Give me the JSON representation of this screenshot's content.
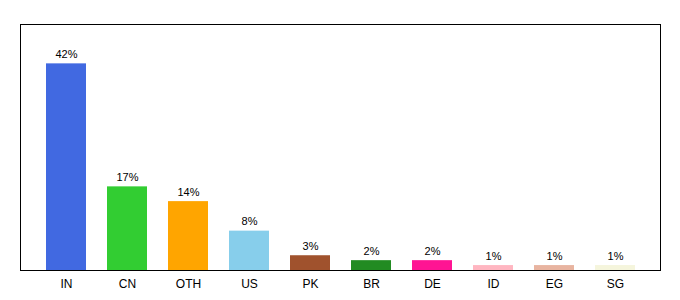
{
  "chart_data": {
    "type": "bar",
    "categories": [
      "IN",
      "CN",
      "OTH",
      "US",
      "PK",
      "BR",
      "DE",
      "ID",
      "EG",
      "SG"
    ],
    "values": [
      42,
      17,
      14,
      8,
      3,
      2,
      2,
      1,
      1,
      1
    ],
    "value_labels": [
      "42%",
      "17%",
      "14%",
      "8%",
      "3%",
      "2%",
      "2%",
      "1%",
      "1%",
      "1%"
    ],
    "colors": [
      "#4169e1",
      "#32cd32",
      "#ffa500",
      "#87ceeb",
      "#a0522d",
      "#228b22",
      "#ff1493",
      "#ffb6c1",
      "#e8b4a0",
      "#f5f5dc"
    ],
    "data_labels": true,
    "ylim": [
      0,
      50
    ],
    "tick_labels": "x"
  }
}
